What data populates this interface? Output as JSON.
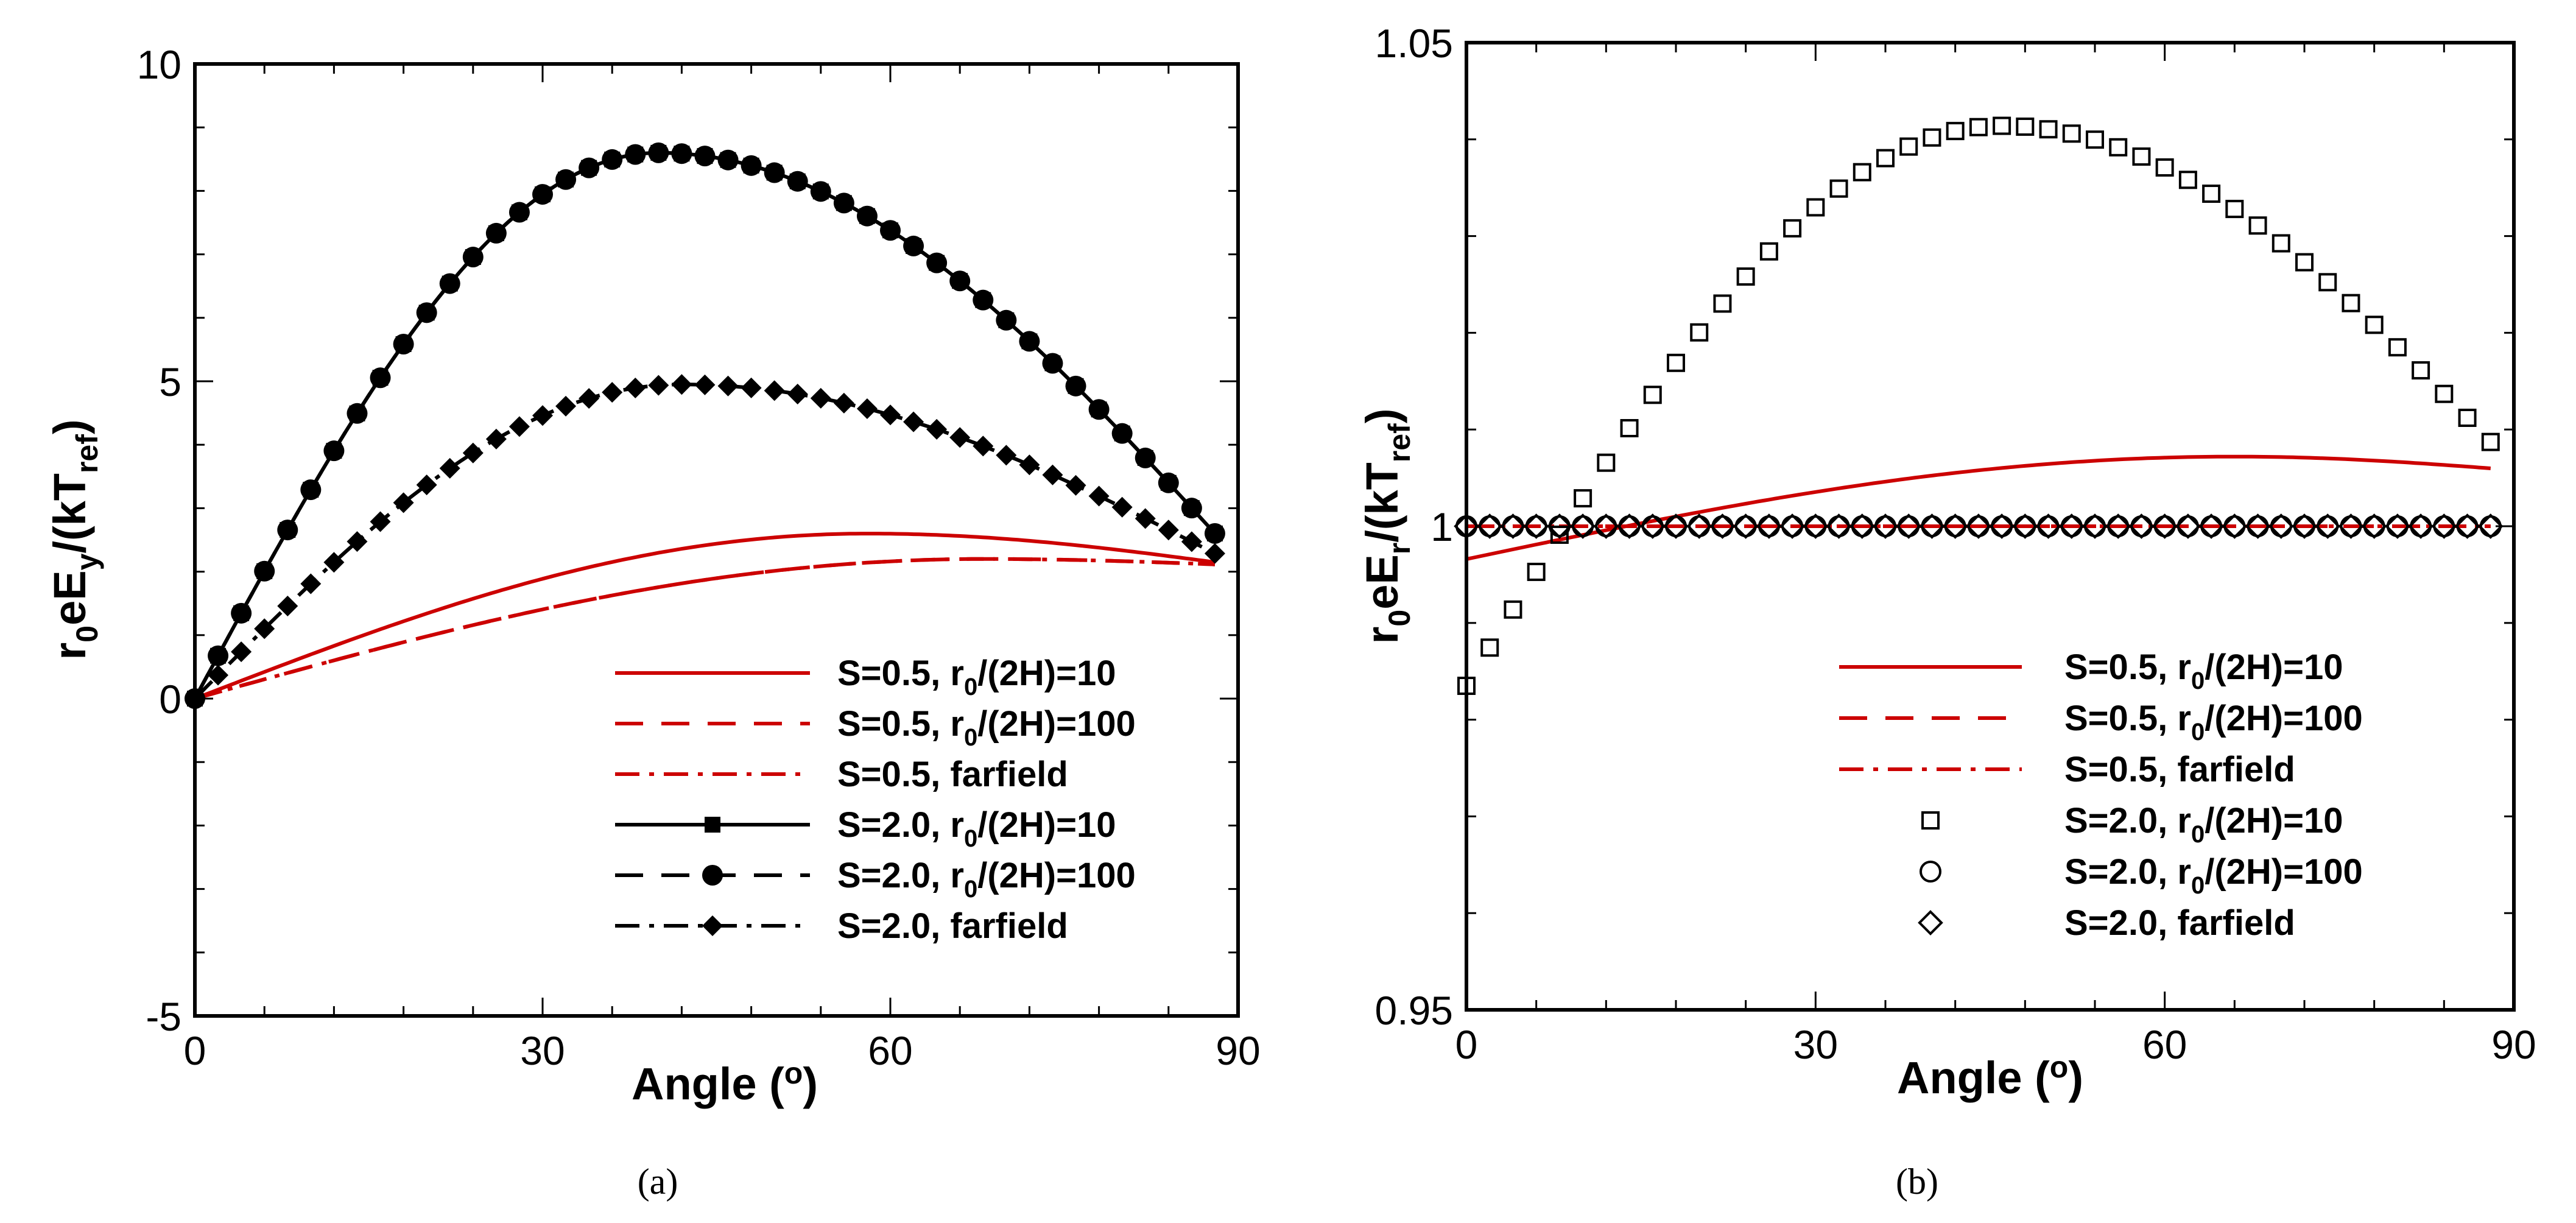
{
  "chart_data": [
    {
      "id": "a",
      "type": "line",
      "caption": "(a)",
      "xlabel": "Angle (",
      "xlabel_sup": "o",
      "xlabel_end": ")",
      "ylabel_parts": [
        "r",
        "0",
        "eE",
        "y",
        "/(kT",
        "ref",
        ")"
      ],
      "xlim": [
        0,
        90
      ],
      "ylim": [
        -5,
        10
      ],
      "xticks": [
        "0",
        "30",
        "60",
        "90"
      ],
      "yticks": [
        "-5",
        "0",
        "5",
        "10"
      ],
      "series": [
        {
          "name": "S=0.5,  r0/(2H)=10",
          "label_parts": [
            "S=0.5,  r",
            "0",
            "/(2H)=10"
          ],
          "color": "#cc0000",
          "dash": "solid",
          "marker": "none",
          "peak_x": 58,
          "peak_y": 2.6,
          "end_y": 2.1
        },
        {
          "name": "S=0.5,  r0/(2H)=100",
          "label_parts": [
            "S=0.5,  r",
            "0",
            "/(2H)=100"
          ],
          "color": "#cc0000",
          "dash": "dash",
          "marker": "none",
          "peak_x": 68,
          "peak_y": 2.2,
          "end_y": 2.1
        },
        {
          "name": "S=0.5,  farfield",
          "label_parts": [
            "S=0.5,  farfield",
            "",
            ""
          ],
          "color": "#cc0000",
          "dash": "dashdot",
          "marker": "none",
          "peak_x": 68,
          "peak_y": 2.2,
          "end_y": 2.1
        },
        {
          "name": "S=2.0,  r0/(2H)=10",
          "label_parts": [
            "S=2.0,  r",
            "0",
            "/(2H)=10"
          ],
          "color": "#000000",
          "dash": "solid",
          "marker": "square",
          "peak_x": 40,
          "peak_y": 8.6,
          "end_y": 2.2
        },
        {
          "name": "S=2.0,  r0/(2H)=100",
          "label_parts": [
            "S=2.0,  r",
            "0",
            "/(2H)=100"
          ],
          "color": "#000000",
          "dash": "dash",
          "marker": "circle",
          "peak_x": 40,
          "peak_y": 8.6,
          "end_y": 2.2
        },
        {
          "name": "S=2.0,  farfield",
          "label_parts": [
            "S=2.0,  farfield",
            "",
            ""
          ],
          "color": "#000000",
          "dash": "dashdot",
          "marker": "diamond",
          "peak_x": 42,
          "peak_y": 4.95,
          "end_y": 2.1
        }
      ]
    },
    {
      "id": "b",
      "type": "line",
      "caption": "(b)",
      "xlabel": "Angle (",
      "xlabel_sup": "o",
      "xlabel_end": ")",
      "ylabel_parts": [
        "r",
        "0",
        "eE",
        "r",
        "/(kT",
        "ref",
        ")"
      ],
      "xlim": [
        0,
        90
      ],
      "ylim": [
        0.95,
        1.05
      ],
      "xticks": [
        "0",
        "30",
        "60",
        "90"
      ],
      "yticks": [
        "0.95",
        "1",
        "1.05"
      ],
      "series": [
        {
          "name": "S=0.5, r0/(2H)=10",
          "label_parts": [
            "S=0.5, r",
            "0",
            "/(2H)=10"
          ],
          "color": "#cc0000",
          "dash": "solid",
          "marker": "none",
          "start_y": 0.9966,
          "peak_x": 66,
          "peak_y": 1.0072,
          "end_y": 1.0058
        },
        {
          "name": "S=0.5, r0/(2H)=100",
          "label_parts": [
            "S=0.5, r",
            "0",
            "/(2H)=100"
          ],
          "color": "#cc0000",
          "dash": "dash",
          "marker": "none",
          "start_y": 1.0,
          "peak_x": 45,
          "peak_y": 1.0,
          "end_y": 1.0
        },
        {
          "name": "S=0.5,  farfield",
          "label_parts": [
            "S=0.5,  farfield",
            "",
            ""
          ],
          "color": "#cc0000",
          "dash": "dashdot",
          "marker": "none",
          "start_y": 1.0,
          "peak_x": 45,
          "peak_y": 1.0,
          "end_y": 1.0
        },
        {
          "name": "S=2.0, r0/(2H)=10",
          "label_parts": [
            "S=2.0, r",
            "0",
            "/(2H)=10"
          ],
          "color": "#000000",
          "dash": "none",
          "marker": "square-open",
          "start_y": 0.9835,
          "peak_x": 46,
          "peak_y": 1.0414,
          "end_y": 1.0062
        },
        {
          "name": "S=2.0, r0/(2H)=100",
          "label_parts": [
            "S=2.0, r",
            "0",
            "/(2H)=100"
          ],
          "color": "#000000",
          "dash": "none",
          "marker": "circle-open",
          "start_y": 1.0,
          "peak_x": 45,
          "peak_y": 1.0,
          "end_y": 1.0
        },
        {
          "name": "S=2.0, farfield",
          "label_parts": [
            "S=2.0, farfield",
            "",
            ""
          ],
          "color": "#000000",
          "dash": "none",
          "marker": "diamond-open",
          "start_y": 1.0,
          "peak_x": 45,
          "peak_y": 1.0,
          "end_y": 1.0
        }
      ]
    }
  ]
}
